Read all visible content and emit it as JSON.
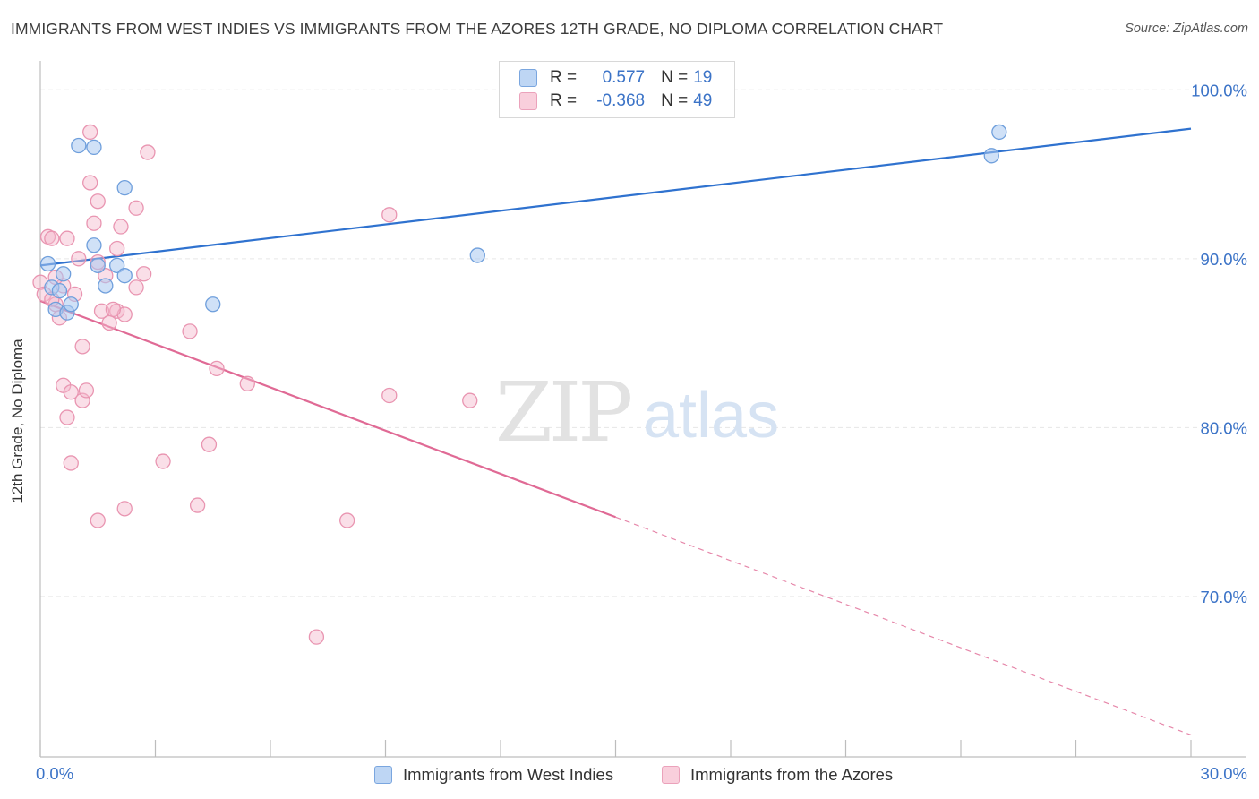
{
  "title": "IMMIGRANTS FROM WEST INDIES VS IMMIGRANTS FROM THE AZORES 12TH GRADE, NO DIPLOMA CORRELATION CHART",
  "source": "Source: ZipAtlas.com",
  "watermark": {
    "zip": "ZIP",
    "atlas": "atlas"
  },
  "legend": {
    "series": [
      {
        "r_label": "R =",
        "r_value": "0.577",
        "n_label": "N =",
        "n_value": "19"
      },
      {
        "r_label": "R =",
        "r_value": "-0.368",
        "n_label": "N =",
        "n_value": "49"
      }
    ]
  },
  "colors": {
    "blue_fill": "#a9c8f0",
    "blue_stroke": "#6f9fdc",
    "blue_line": "#2f72cf",
    "pink_fill": "#f5b9cc",
    "pink_stroke": "#e995b1",
    "pink_line": "#e06a95",
    "axis_text": "#3b73c7",
    "grid": "#e6e6e6"
  },
  "chart_data": {
    "type": "scatter",
    "title": "IMMIGRANTS FROM WEST INDIES VS IMMIGRANTS FROM THE AZORES 12TH GRADE, NO DIPLOMA CORRELATION CHART",
    "xlabel": "",
    "ylabel": "12th Grade, No Diploma",
    "xlim": [
      0,
      30
    ],
    "ylim": [
      60.5,
      101.5
    ],
    "x_tick_labels": [
      {
        "value": 0,
        "label": "0.0%"
      },
      {
        "value": 30,
        "label": "30.0%"
      }
    ],
    "y_tick_labels": [
      {
        "value": 100,
        "label": "100.0%"
      },
      {
        "value": 90,
        "label": "90.0%"
      },
      {
        "value": 80,
        "label": "80.0%"
      },
      {
        "value": 70,
        "label": "70.0%"
      }
    ],
    "x_minor_ticks": [
      3,
      6,
      9,
      12,
      15,
      18,
      21,
      24,
      27
    ],
    "grid": true,
    "series": [
      {
        "name": "Immigrants from West Indies",
        "color": "#a9c8f0",
        "points": [
          [
            0.2,
            89.7
          ],
          [
            0.3,
            88.3
          ],
          [
            0.4,
            87.0
          ],
          [
            0.5,
            88.1
          ],
          [
            0.6,
            89.1
          ],
          [
            0.7,
            86.8
          ],
          [
            0.8,
            87.3
          ],
          [
            1.0,
            96.7
          ],
          [
            1.4,
            96.6
          ],
          [
            1.4,
            90.8
          ],
          [
            1.5,
            89.6
          ],
          [
            1.7,
            88.4
          ],
          [
            2.0,
            89.6
          ],
          [
            2.2,
            89.0
          ],
          [
            2.2,
            94.2
          ],
          [
            4.5,
            87.3
          ],
          [
            11.4,
            90.2
          ],
          [
            24.8,
            96.1
          ],
          [
            25.0,
            97.5
          ]
        ],
        "trend": {
          "x": [
            0,
            30
          ],
          "y": [
            89.6,
            97.7
          ],
          "dashed": false
        }
      },
      {
        "name": "Immigrants from the Azores",
        "color": "#f5b9cc",
        "points": [
          [
            0.0,
            88.6
          ],
          [
            0.1,
            87.9
          ],
          [
            0.2,
            91.3
          ],
          [
            0.3,
            91.2
          ],
          [
            0.4,
            87.3
          ],
          [
            0.5,
            86.5
          ],
          [
            0.6,
            82.5
          ],
          [
            0.6,
            88.4
          ],
          [
            0.7,
            91.2
          ],
          [
            0.7,
            80.6
          ],
          [
            0.8,
            82.1
          ],
          [
            0.8,
            77.9
          ],
          [
            0.9,
            87.9
          ],
          [
            1.0,
            90.0
          ],
          [
            1.1,
            81.6
          ],
          [
            1.1,
            84.8
          ],
          [
            1.2,
            82.2
          ],
          [
            1.3,
            94.5
          ],
          [
            1.3,
            97.5
          ],
          [
            1.4,
            92.1
          ],
          [
            1.5,
            89.8
          ],
          [
            1.5,
            74.5
          ],
          [
            1.5,
            93.4
          ],
          [
            1.6,
            86.9
          ],
          [
            1.7,
            89.0
          ],
          [
            1.8,
            86.2
          ],
          [
            2.0,
            86.9
          ],
          [
            2.0,
            90.6
          ],
          [
            2.1,
            91.9
          ],
          [
            2.2,
            75.2
          ],
          [
            2.2,
            86.7
          ],
          [
            2.5,
            88.3
          ],
          [
            2.5,
            93.0
          ],
          [
            2.7,
            89.1
          ],
          [
            2.8,
            96.3
          ],
          [
            3.2,
            78.0
          ],
          [
            3.9,
            85.7
          ],
          [
            4.1,
            75.4
          ],
          [
            4.4,
            79.0
          ],
          [
            4.6,
            83.5
          ],
          [
            5.4,
            82.6
          ],
          [
            7.2,
            67.6
          ],
          [
            8.0,
            74.5
          ],
          [
            9.1,
            81.9
          ],
          [
            9.1,
            92.6
          ],
          [
            11.2,
            81.6
          ],
          [
            0.3,
            87.6
          ],
          [
            1.9,
            87.0
          ],
          [
            0.4,
            88.9
          ]
        ],
        "trend": {
          "x": [
            0,
            15
          ],
          "y": [
            87.5,
            74.7
          ],
          "dashed": false
        },
        "trend_extension": {
          "x": [
            15,
            30
          ],
          "y": [
            74.7,
            61.8
          ],
          "dashed": true
        }
      }
    ]
  }
}
